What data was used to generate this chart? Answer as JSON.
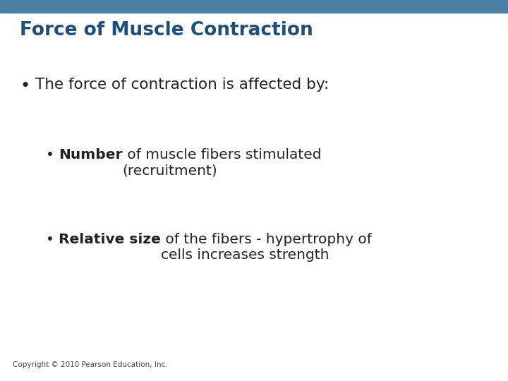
{
  "title": "Force of Muscle Contraction",
  "title_color": "#1F4E79",
  "header_bar_color": "#4A7EA5",
  "background_color": "#FFFFFF",
  "copyright": "Copyright © 2010 Pearson Education, Inc.",
  "copyright_color": "#444444",
  "copyright_fontsize": 7.5,
  "title_fontsize": 19,
  "body_fontsize": 15.5,
  "sub_fontsize": 14.5,
  "bullet_color": "#222222",
  "bullet1_text": "The force of contraction is affected by:",
  "bullet2_bold": "Number",
  "bullet2_normal": " of muscle fibers stimulated\n(recruitment)",
  "bullet3_bold": "Relative size",
  "bullet3_normal": " of the fibers - hypertrophy of\ncells increases strength"
}
